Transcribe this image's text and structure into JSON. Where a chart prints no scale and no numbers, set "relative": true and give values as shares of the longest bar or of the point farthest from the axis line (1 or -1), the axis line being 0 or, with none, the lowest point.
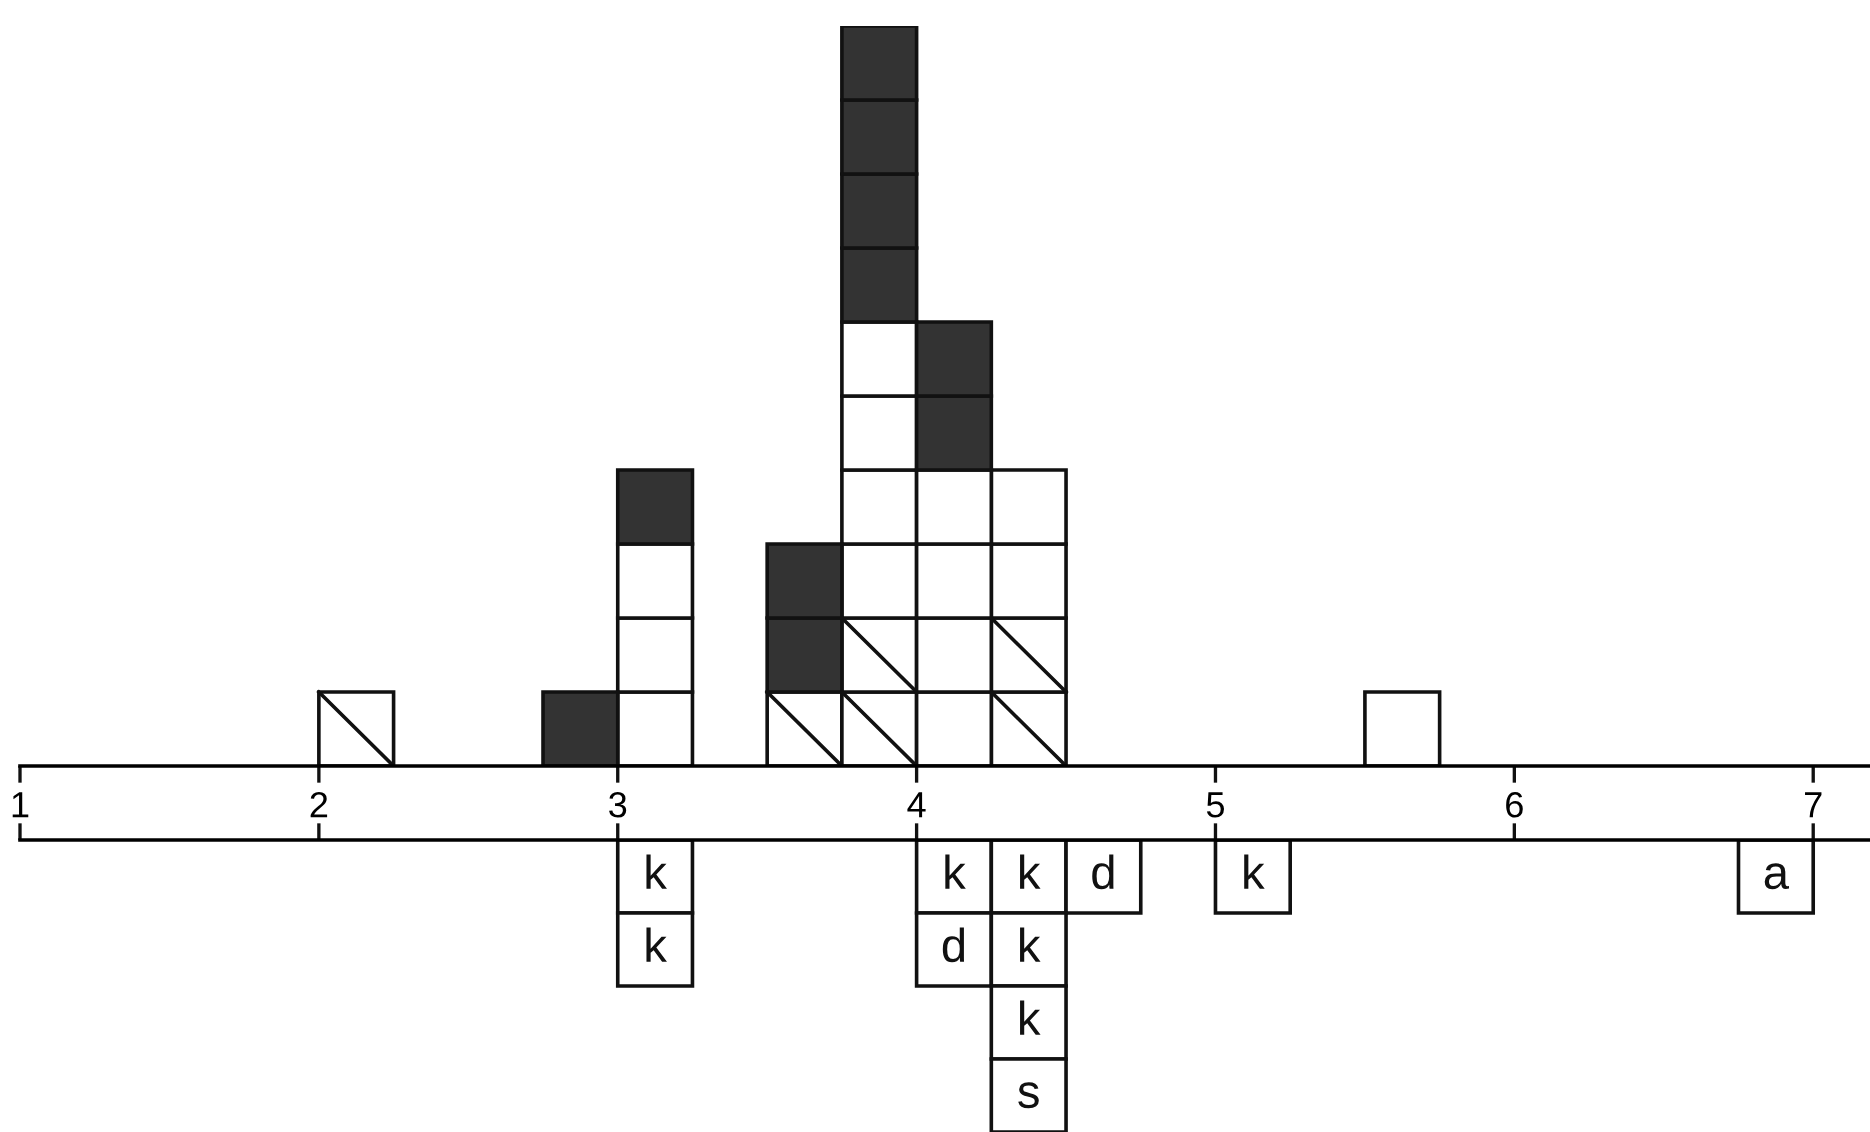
{
  "chart_data": [
    {
      "type": "bar",
      "stacked": true,
      "relative": true,
      "xlim": [
        1,
        7.19
      ],
      "xticks": [
        1,
        2,
        3,
        4,
        5,
        6,
        7
      ],
      "tick_labels": "x",
      "grid": false,
      "legend": false,
      "x": [
        2.125,
        2.875,
        3.125,
        3.625,
        3.875,
        4.125,
        4.375,
        5.625
      ],
      "series": [
        {
          "color": "#ffffff",
          "line_style": "solid",
          "values": [
            0.1,
            null,
            null,
            0.1,
            0.1,
            null,
            0.1,
            null
          ]
        },
        {
          "color": "#ffffff",
          "line_style": "solid",
          "values": [
            null,
            null,
            null,
            null,
            0.1,
            null,
            0.1,
            null
          ]
        },
        {
          "color": "#ffffff",
          "values": [
            null,
            null,
            0.1,
            null,
            0.1,
            0.1,
            0.1,
            0.1
          ]
        },
        {
          "color": "#ffffff",
          "values": [
            null,
            null,
            0.1,
            null,
            0.1,
            0.1,
            0.1,
            null
          ]
        },
        {
          "color": "#ffffff",
          "values": [
            null,
            null,
            0.1,
            null,
            0.1,
            0.1,
            null,
            null
          ]
        },
        {
          "color": "#ffffff",
          "values": [
            null,
            null,
            null,
            null,
            0.1,
            0.1,
            null,
            null
          ]
        },
        {
          "color": "#333333",
          "values": [
            null,
            0.1,
            0.1,
            0.1,
            0.1,
            0.1,
            null,
            null
          ]
        },
        {
          "color": "#333333",
          "values": [
            null,
            null,
            null,
            0.1,
            0.1,
            0.1,
            null,
            null
          ]
        },
        {
          "color": "#333333",
          "values": [
            null,
            null,
            null,
            null,
            0.1,
            null,
            null,
            null
          ]
        },
        {
          "color": "#333333",
          "values": [
            null,
            null,
            null,
            null,
            0.1,
            null,
            null,
            null
          ]
        }
      ]
    },
    {
      "type": "bar",
      "stacked": true,
      "relative": true,
      "xlim": [
        1,
        7.19
      ],
      "xticks": [
        {
          "value": 1,
          "label": null
        },
        {
          "value": 2,
          "label": null
        },
        {
          "value": 3,
          "label": null
        },
        {
          "value": 4,
          "label": null
        },
        {
          "value": 5,
          "label": null
        },
        {
          "value": 6,
          "label": null
        },
        {
          "value": 7,
          "label": null
        }
      ],
      "tick_labels": false,
      "grid": false,
      "legend": false,
      "x": [
        3.125,
        4.125,
        4.375,
        4.625,
        5.125,
        6.875
      ],
      "series": [
        {
          "color": "#ffffff",
          "values": [
            -0.25,
            -0.25,
            -0.25,
            -0.25,
            -0.25,
            -0.25
          ]
        },
        {
          "color": "#ffffff",
          "values": [
            -0.25,
            -0.25,
            -0.25,
            null,
            null,
            null
          ]
        },
        {
          "color": "#ffffff",
          "values": [
            null,
            null,
            -0.25,
            null,
            null,
            null
          ]
        },
        {
          "color": "#ffffff",
          "values": [
            null,
            null,
            -0.25,
            null,
            null,
            null
          ]
        }
      ],
      "annotations": [
        "k",
        "k",
        "k",
        "d",
        "k",
        "a",
        "k",
        "d",
        "k",
        "k",
        "s"
      ]
    }
  ]
}
